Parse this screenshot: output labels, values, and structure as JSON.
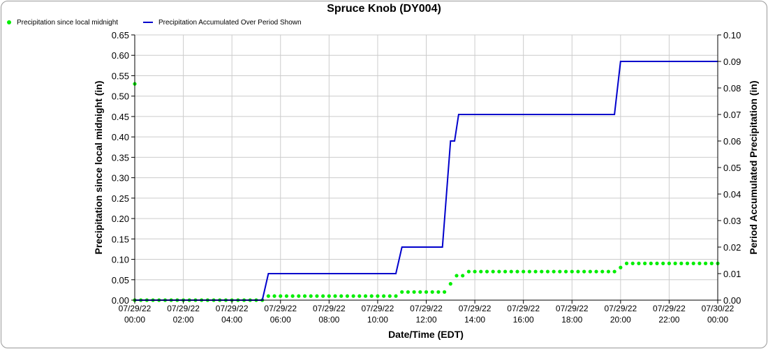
{
  "chart_data": {
    "type": "line",
    "title": "Spruce Knob (DY004)",
    "xlabel": "Date/Time (EDT)",
    "ylabel_left": "Precipitation since local midnight (in)",
    "ylabel_right": "Period Accumulated Precipitation (in)",
    "ylim_left": [
      0,
      0.65
    ],
    "ylim_right": [
      0,
      0.1
    ],
    "xlim_hours": [
      0,
      24
    ],
    "grid": true,
    "legend_position": "top-left",
    "x_tick_labels": [
      {
        "date": "07/29/22",
        "time": "00:00"
      },
      {
        "date": "07/29/22",
        "time": "02:00"
      },
      {
        "date": "07/29/22",
        "time": "04:00"
      },
      {
        "date": "07/29/22",
        "time": "06:00"
      },
      {
        "date": "07/29/22",
        "time": "08:00"
      },
      {
        "date": "07/29/22",
        "time": "10:00"
      },
      {
        "date": "07/29/22",
        "time": "12:00"
      },
      {
        "date": "07/29/22",
        "time": "14:00"
      },
      {
        "date": "07/29/22",
        "time": "16:00"
      },
      {
        "date": "07/29/22",
        "time": "18:00"
      },
      {
        "date": "07/29/22",
        "time": "20:00"
      },
      {
        "date": "07/29/22",
        "time": "22:00"
      },
      {
        "date": "07/30/22",
        "time": "00:00"
      }
    ],
    "y_left_tick_labels": [
      "0.00",
      "0.05",
      "0.10",
      "0.15",
      "0.20",
      "0.25",
      "0.30",
      "0.35",
      "0.40",
      "0.45",
      "0.50",
      "0.55",
      "0.60",
      "0.65"
    ],
    "y_right_tick_labels": [
      "0.00",
      "0.01",
      "0.02",
      "0.03",
      "0.04",
      "0.05",
      "0.06",
      "0.07",
      "0.08",
      "0.09",
      "0.10"
    ],
    "series": [
      {
        "name": "Precipitation since local midnight",
        "axis": "left",
        "style": "dots",
        "color": "#00ee00",
        "segments": [
          {
            "value": 0.53,
            "start": "07/29/22 00:00",
            "end": "07/29/22 00:00"
          },
          {
            "value": 0.0,
            "start": "07/29/22 00:00",
            "end": "07/29/22 05:15"
          },
          {
            "value": 0.01,
            "start": "07/29/22 05:30",
            "end": "07/29/22 10:45"
          },
          {
            "value": 0.02,
            "start": "07/29/22 11:00",
            "end": "07/29/22 12:45"
          },
          {
            "value": 0.04,
            "start": "07/29/22 13:00",
            "end": "07/29/22 13:00"
          },
          {
            "value": 0.06,
            "start": "07/29/22 13:15",
            "end": "07/29/22 13:30"
          },
          {
            "value": 0.07,
            "start": "07/29/22 13:45",
            "end": "07/29/22 19:45"
          },
          {
            "value": 0.08,
            "start": "07/29/22 20:00",
            "end": "07/29/22 20:00"
          },
          {
            "value": 0.09,
            "start": "07/29/22 20:15",
            "end": "07/30/22 00:00"
          }
        ]
      },
      {
        "name": "Precipitation Accumulated Over Period Shown",
        "axis": "right",
        "style": "line",
        "color": "#0000cc",
        "points": [
          {
            "t": "07/29/22 00:00",
            "v": 0.0
          },
          {
            "t": "07/29/22 05:15",
            "v": 0.0
          },
          {
            "t": "07/29/22 05:30",
            "v": 0.01
          },
          {
            "t": "07/29/22 10:45",
            "v": 0.01
          },
          {
            "t": "07/29/22 11:00",
            "v": 0.02
          },
          {
            "t": "07/29/22 12:40",
            "v": 0.02
          },
          {
            "t": "07/29/22 13:00",
            "v": 0.06
          },
          {
            "t": "07/29/22 13:10",
            "v": 0.06
          },
          {
            "t": "07/29/22 13:20",
            "v": 0.07
          },
          {
            "t": "07/29/22 19:45",
            "v": 0.07
          },
          {
            "t": "07/29/22 20:00",
            "v": 0.09
          },
          {
            "t": "07/30/22 00:00",
            "v": 0.09
          }
        ]
      }
    ]
  }
}
